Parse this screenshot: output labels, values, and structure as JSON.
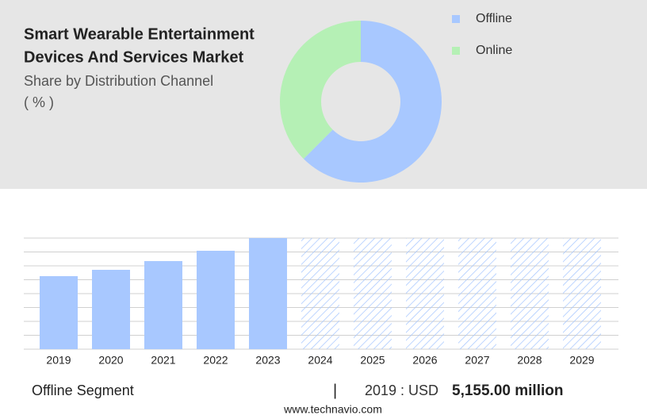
{
  "header": {
    "title_lines": [
      "Smart Wearable Entertainment",
      "Devices And Services Market"
    ],
    "subtitle_lines": [
      "Share by Distribution Channel",
      "( % )"
    ]
  },
  "chart_data": [
    {
      "type": "pie",
      "donut": true,
      "categories": [
        "Offline",
        "Online"
      ],
      "values": [
        62.5,
        37.5
      ],
      "colors": [
        "#a8c8ff",
        "#b5f0b5"
      ],
      "legend": "top-right"
    },
    {
      "type": "bar",
      "categories": [
        "2019",
        "2020",
        "2021",
        "2022",
        "2023",
        "2024",
        "2025",
        "2026",
        "2027",
        "2028",
        "2029"
      ],
      "values": [
        5155,
        5603,
        6220,
        6948,
        7845,
        null,
        null,
        null,
        null,
        null,
        null
      ],
      "color": "#a8c8ff",
      "ylim": [
        0,
        7845
      ],
      "grid": true
    }
  ],
  "footer": {
    "segment": "Offline Segment",
    "separator": "|",
    "year_label": "2019 : USD",
    "value": "5,155.00 million",
    "source": "www.technavio.com"
  }
}
